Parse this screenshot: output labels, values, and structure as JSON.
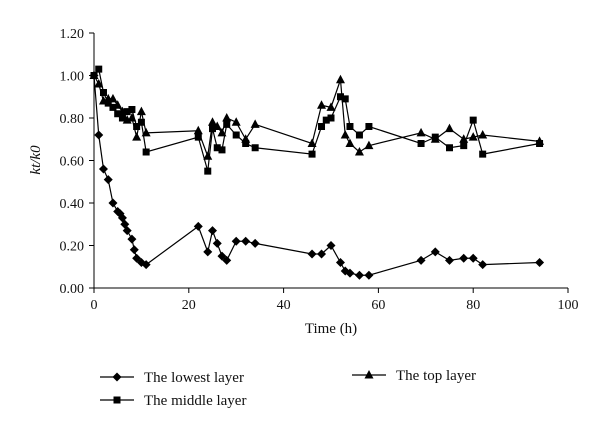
{
  "chart_data": {
    "type": "line",
    "title": "",
    "xlabel": "Time (h)",
    "ylabel": "kt/k0",
    "xlim": [
      0,
      100
    ],
    "ylim": [
      0,
      1.2
    ],
    "x_ticks": [
      "0",
      "20",
      "40",
      "60",
      "80",
      "100"
    ],
    "y_ticks": [
      "0.00",
      "0.20",
      "0.40",
      "0.60",
      "0.80",
      "1.00",
      "1.20"
    ],
    "grid": false,
    "legend_position": "below",
    "series": [
      {
        "name": "The lowest layer",
        "marker": "diamond",
        "color": "#000000",
        "x": [
          0,
          1,
          2,
          3,
          4,
          5,
          5.5,
          6,
          6.5,
          7,
          8,
          8.5,
          9,
          10,
          11,
          22,
          24,
          25,
          26,
          27,
          28,
          30,
          32,
          34,
          46,
          48,
          50,
          52,
          53,
          54,
          56,
          58,
          69,
          72,
          75,
          78,
          80,
          82,
          94
        ],
        "y": [
          1.0,
          0.72,
          0.56,
          0.51,
          0.4,
          0.36,
          0.35,
          0.33,
          0.3,
          0.27,
          0.23,
          0.18,
          0.14,
          0.12,
          0.11,
          0.29,
          0.17,
          0.27,
          0.21,
          0.15,
          0.13,
          0.22,
          0.22,
          0.21,
          0.16,
          0.16,
          0.2,
          0.12,
          0.08,
          0.07,
          0.06,
          0.06,
          0.13,
          0.17,
          0.13,
          0.14,
          0.14,
          0.11,
          0.12
        ]
      },
      {
        "name": "The middle layer",
        "marker": "square",
        "color": "#000000",
        "x": [
          0,
          1,
          2,
          3,
          4,
          5,
          6,
          7,
          8,
          9,
          10,
          11,
          22,
          24,
          25,
          26,
          27,
          28,
          30,
          32,
          34,
          46,
          48,
          49,
          50,
          52,
          53,
          54,
          56,
          58,
          69,
          72,
          75,
          78,
          80,
          82,
          94
        ],
        "y": [
          1.0,
          1.03,
          0.92,
          0.87,
          0.85,
          0.82,
          0.8,
          0.83,
          0.84,
          0.76,
          0.78,
          0.64,
          0.71,
          0.55,
          0.75,
          0.66,
          0.65,
          0.77,
          0.72,
          0.68,
          0.66,
          0.63,
          0.76,
          0.79,
          0.8,
          0.9,
          0.89,
          0.76,
          0.72,
          0.76,
          0.68,
          0.71,
          0.66,
          0.67,
          0.79,
          0.63,
          0.68
        ]
      },
      {
        "name": "The top layer",
        "marker": "triangle",
        "color": "#000000",
        "x": [
          0,
          1,
          2,
          3,
          4,
          5,
          6,
          7,
          8,
          9,
          10,
          11,
          22,
          24,
          25,
          26,
          27,
          28,
          30,
          32,
          34,
          46,
          48,
          50,
          52,
          53,
          54,
          56,
          58,
          69,
          72,
          75,
          78,
          80,
          82,
          94
        ],
        "y": [
          1.0,
          0.96,
          0.88,
          0.89,
          0.89,
          0.86,
          0.83,
          0.79,
          0.8,
          0.71,
          0.83,
          0.73,
          0.74,
          0.62,
          0.78,
          0.76,
          0.73,
          0.8,
          0.78,
          0.7,
          0.77,
          0.68,
          0.86,
          0.85,
          0.98,
          0.72,
          0.68,
          0.64,
          0.67,
          0.73,
          0.7,
          0.75,
          0.7,
          0.71,
          0.72,
          0.69
        ]
      }
    ]
  }
}
